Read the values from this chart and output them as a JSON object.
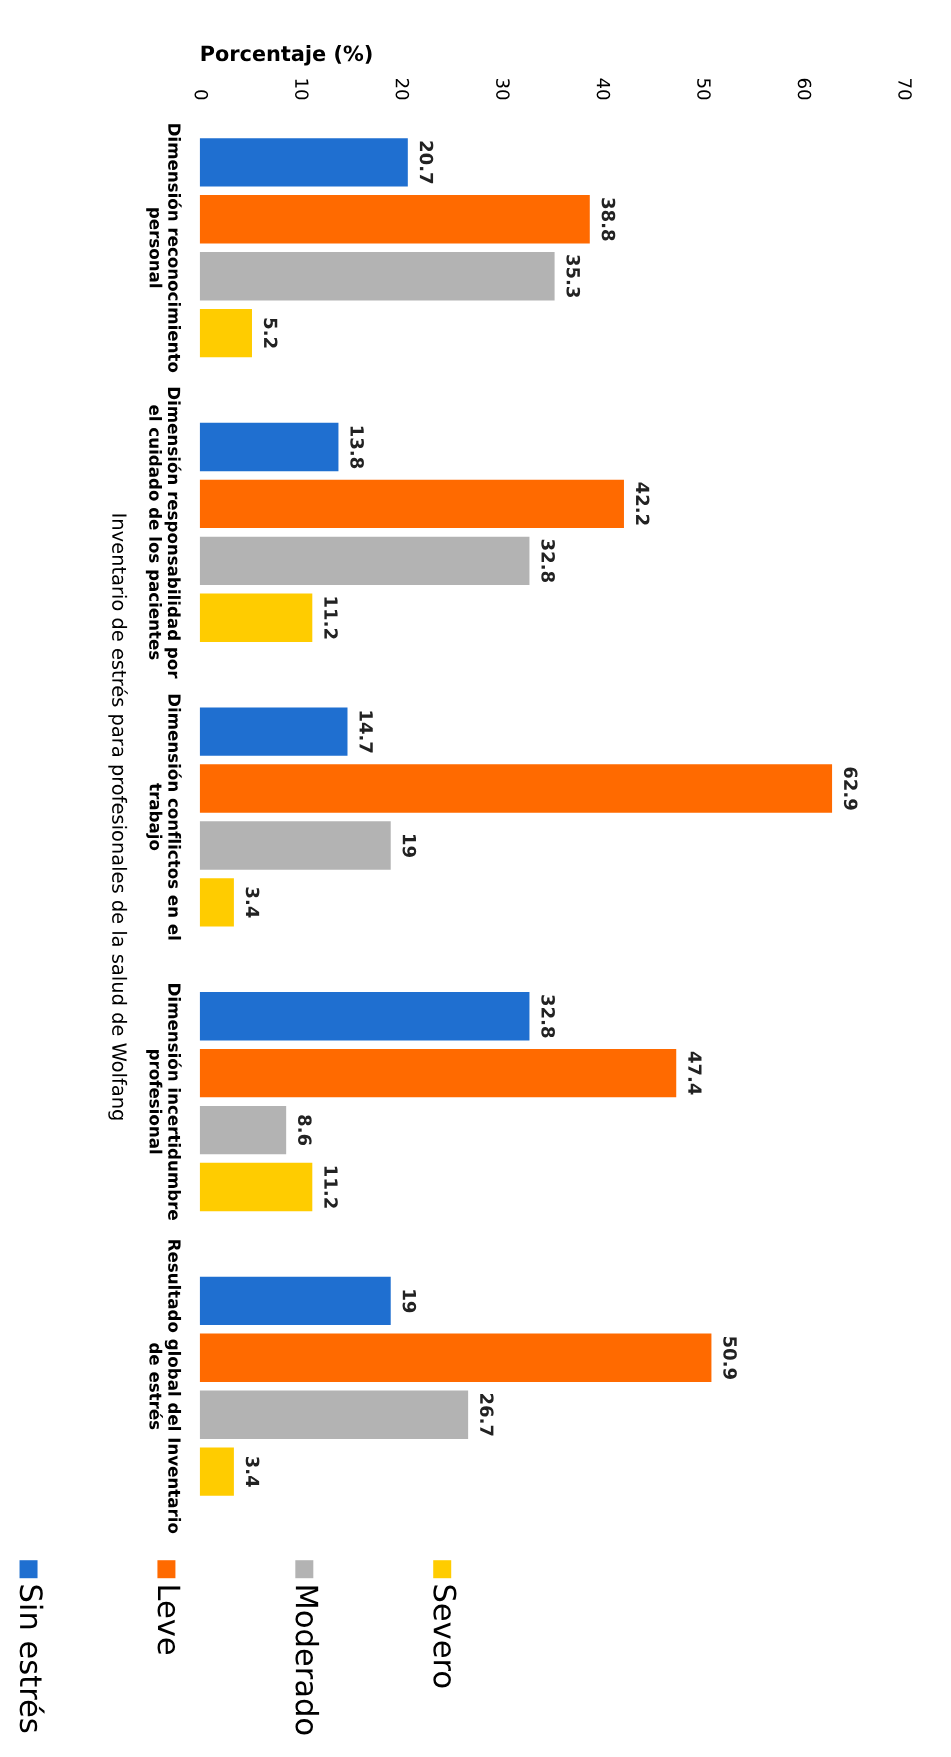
{
  "chart_data": {
    "type": "bar",
    "orientation": "horizontal",
    "xlabel": "Porcentaje (%)",
    "ylabel": "Inventario de estrés para profesionales de la salud de Wolfang",
    "categories": [
      "Dimensión reconocimiento\npersonal",
      "Dimensión responsabilidad por\nel cuidado de los pacientes",
      "Dimensión conflictos en el\ntrabajo",
      "Dimensión incertidumbre\nprofesional",
      "Resultado global del Inventario\nde estrés"
    ],
    "series": [
      {
        "name": "Sin estrés",
        "color": "#1f6fd0",
        "values": [
          20.7,
          13.8,
          14.7,
          32.8,
          19
        ]
      },
      {
        "name": "Leve",
        "color": "#ff6a00",
        "values": [
          38.8,
          42.2,
          62.9,
          47.4,
          50.9
        ]
      },
      {
        "name": "Moderado",
        "color": "#b3b3b3",
        "values": [
          35.3,
          32.8,
          19,
          8.6,
          26.7
        ]
      },
      {
        "name": "Severo",
        "color": "#ffcc00",
        "values": [
          5.2,
          11.2,
          3.4,
          11.2,
          3.4
        ]
      }
    ],
    "xlim": [
      0,
      70
    ],
    "xticks": [
      0,
      10,
      20,
      30,
      40,
      50,
      60,
      70
    ],
    "data_labels": true,
    "grid": false,
    "legend": "bottom left"
  }
}
